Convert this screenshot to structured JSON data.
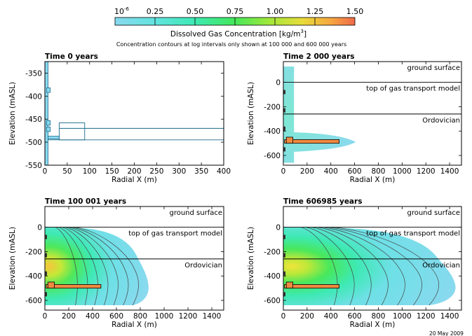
{
  "colorbar": {
    "ticks": [
      "0.25",
      "0.50",
      "0.75",
      "1.00",
      "1.25",
      "1.50"
    ],
    "min_label": "10",
    "min_exp": "-6",
    "title": "Dissolved Gas Concentration [kg/m",
    "title_sup": "3",
    "title_end": "]",
    "subtitle": "Concentration contours at log intervals only shown at 100 000 and 600 000 years",
    "colors": [
      "#87d9ee",
      "#60e6d2",
      "#3ee9a8",
      "#44e85e",
      "#9be83b",
      "#e0e13a",
      "#f6b33e",
      "#f0704a"
    ]
  },
  "date_stamp": "20  May  2009",
  "chart_data": [
    {
      "type": "area",
      "title": "Time       0  years",
      "xlabel": "Radial  X  (m)",
      "ylabel": "Elevation  (mASL)",
      "xlim": [
        0,
        400
      ],
      "ylim": [
        -550,
        -325
      ],
      "xticks": [
        "0",
        "50",
        "100",
        "150",
        "200",
        "250",
        "300",
        "350",
        "400"
      ],
      "yticks": [
        "-350",
        "-400",
        "-450",
        "-500",
        "-550"
      ],
      "layer_labels": [],
      "layer_lines": [],
      "plume": null
    },
    {
      "type": "area",
      "title": "Time      2 000  years",
      "xlabel": "Radial  X  (m)",
      "ylabel": "Elevation  (mASL)",
      "xlim": [
        0,
        1500
      ],
      "ylim": [
        -680,
        170
      ],
      "xticks": [
        "0",
        "200",
        "400",
        "600",
        "800",
        "1000",
        "1200",
        "1400"
      ],
      "yticks": [
        "0",
        "-200",
        "-400",
        "-600"
      ],
      "layer_labels": [
        "ground surface",
        "top of gas transport model",
        "Ordovician"
      ],
      "layer_lines": [
        0,
        -260
      ],
      "plume": {
        "reach_x": 610,
        "top_y": 130,
        "contours": false
      }
    },
    {
      "type": "area",
      "title": "Time    100 001  years",
      "xlabel": "Radial  X  (m)",
      "ylabel": "Elevation  (mASL)",
      "xlim": [
        0,
        1500
      ],
      "ylim": [
        -680,
        170
      ],
      "xticks": [
        "0",
        "200",
        "400",
        "600",
        "800",
        "1000",
        "1200",
        "1400"
      ],
      "yticks": [
        "0",
        "-200",
        "-400",
        "-600"
      ],
      "layer_labels": [
        "ground surface",
        "top of gas transport model",
        "Ordovician"
      ],
      "layer_lines": [
        0,
        -260
      ],
      "plume": {
        "reach_x": 870,
        "top_y": 0,
        "contours": true
      }
    },
    {
      "type": "area",
      "title": "Time       606985  years",
      "xlabel": "Radial  X  (m)",
      "ylabel": "Elevation  (mASL)",
      "xlim": [
        0,
        1500
      ],
      "ylim": [
        -680,
        170
      ],
      "xticks": [
        "0",
        "200",
        "400",
        "600",
        "800",
        "1000",
        "1200",
        "1400"
      ],
      "yticks": [
        "0",
        "-200",
        "-400",
        "-600"
      ],
      "layer_labels": [
        "ground surface",
        "top of gas transport model",
        "Ordovician"
      ],
      "layer_lines": [
        0,
        -260
      ],
      "plume": {
        "reach_x": 1450,
        "top_y": 0,
        "contours": true
      }
    }
  ]
}
